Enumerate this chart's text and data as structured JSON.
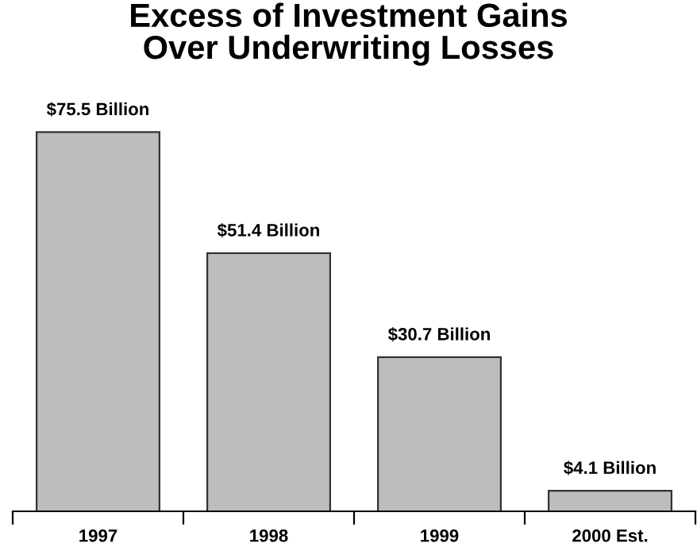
{
  "chart_data": {
    "type": "bar",
    "title": "Excess of Investment Gains\nOver Underwriting Losses",
    "categories": [
      "1997",
      "1998",
      "1999",
      "2000 Est."
    ],
    "values": [
      75.5,
      51.4,
      30.7,
      4.1
    ],
    "value_labels": [
      "$75.5 Billion",
      "$51.4 Billion",
      "$30.7 Billion",
      "$4.1 Billion"
    ],
    "color": "#bdbdbd",
    "grid": false,
    "legend": false
  }
}
